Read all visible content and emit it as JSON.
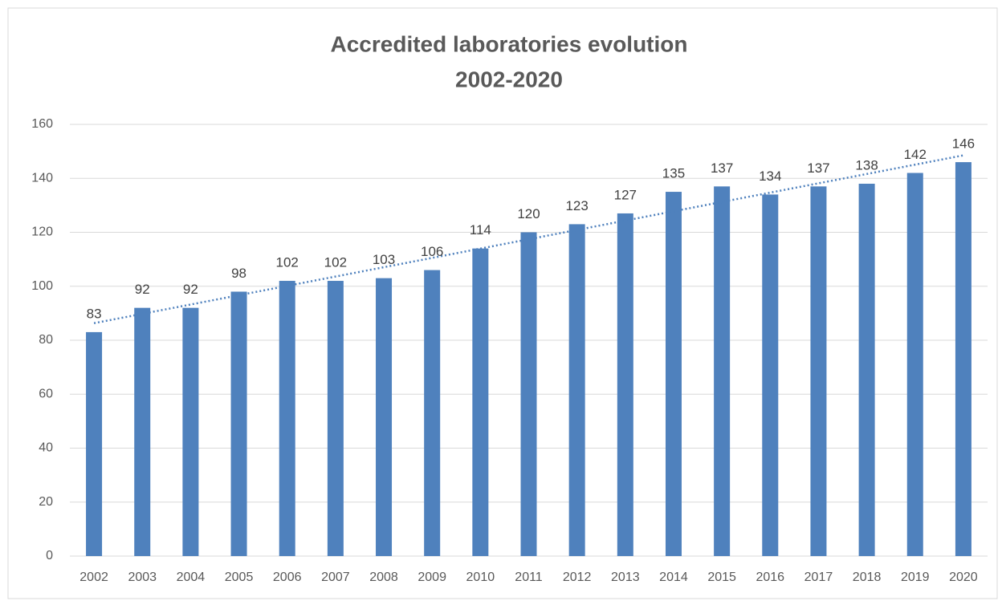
{
  "chart_data": {
    "type": "bar",
    "title": "Accredited laboratories evolution",
    "subtitle": "2002-2020",
    "categories": [
      "2002",
      "2003",
      "2004",
      "2005",
      "2006",
      "2007",
      "2008",
      "2009",
      "2010",
      "2011",
      "2012",
      "2013",
      "2014",
      "2015",
      "2016",
      "2017",
      "2018",
      "2019",
      "2020"
    ],
    "values": [
      83,
      92,
      92,
      98,
      102,
      102,
      103,
      106,
      114,
      120,
      123,
      127,
      135,
      137,
      134,
      137,
      138,
      142,
      146
    ],
    "color": "#4f81bd",
    "ylim": [
      0,
      160
    ],
    "yticks": [
      0,
      20,
      40,
      60,
      80,
      100,
      120,
      140,
      160
    ],
    "grid": true,
    "data_labels": true,
    "trendline": "linear"
  }
}
